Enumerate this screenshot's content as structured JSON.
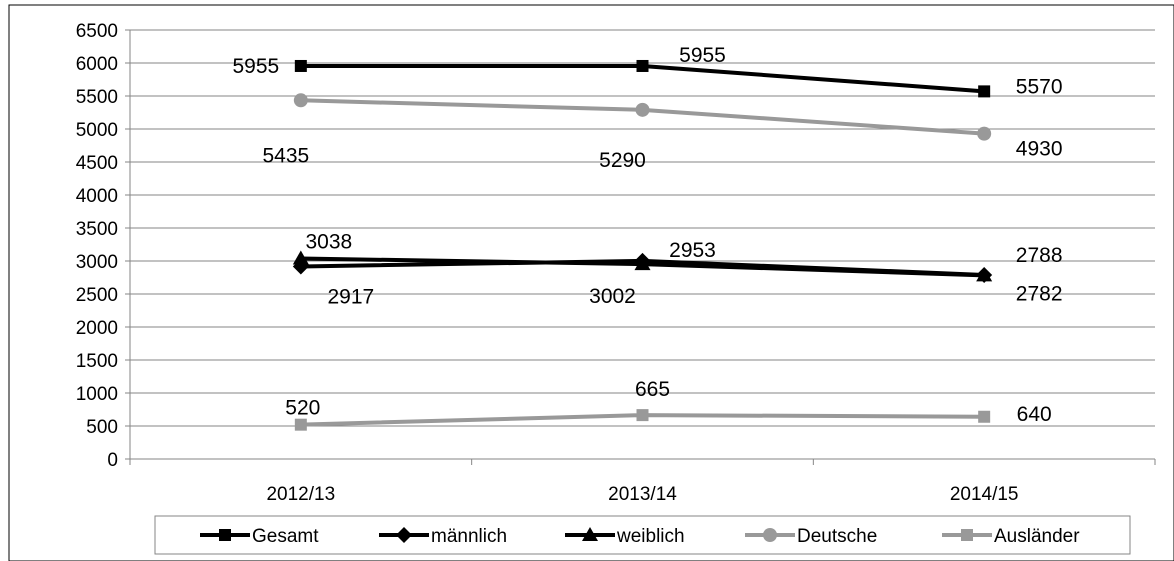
{
  "chart_data": {
    "type": "line",
    "title": "",
    "xlabel": "",
    "ylabel": "",
    "categories": [
      "2012/13",
      "2013/14",
      "2014/15"
    ],
    "ylim": [
      0,
      6500
    ],
    "yticks": [
      0,
      500,
      1000,
      1500,
      2000,
      2500,
      3000,
      3500,
      4000,
      4500,
      5000,
      5500,
      6000,
      6500
    ],
    "grid": true,
    "legend_position": "bottom",
    "series": [
      {
        "name": "Gesamt",
        "values": [
          5955,
          5955,
          5570
        ],
        "labels": [
          "5955",
          "5955",
          "5570"
        ],
        "color": "#000000",
        "marker": "square"
      },
      {
        "name": "männlich",
        "values": [
          2917,
          3002,
          2788
        ],
        "labels": [
          "2917",
          "3002",
          "2788"
        ],
        "color": "#000000",
        "marker": "diamond"
      },
      {
        "name": "weiblich",
        "values": [
          3038,
          2953,
          2782
        ],
        "labels": [
          "3038",
          "2953",
          "2782"
        ],
        "color": "#000000",
        "marker": "triangle"
      },
      {
        "name": "Deutsche",
        "values": [
          5435,
          5290,
          4930
        ],
        "labels": [
          "5435",
          "5290",
          "4930"
        ],
        "color": "#999999",
        "marker": "circle"
      },
      {
        "name": "Ausländer",
        "values": [
          520,
          665,
          640
        ],
        "labels": [
          "520",
          "665",
          "640"
        ],
        "color": "#999999",
        "marker": "square"
      }
    ]
  }
}
